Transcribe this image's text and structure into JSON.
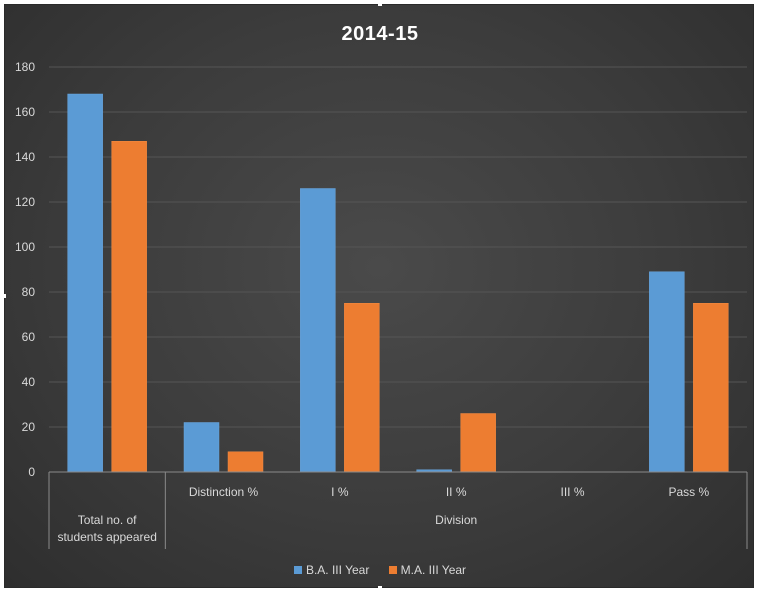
{
  "chart_data": {
    "type": "bar",
    "title": "2014-15",
    "categories": [
      "Total no. of students appeared",
      "Distinction %",
      "I %",
      "II %",
      "III  %",
      "Pass %"
    ],
    "category_groups": [
      {
        "label": "Total no. of students appeared",
        "lines": [
          "Total no. of",
          "students appeared"
        ],
        "span": 1
      },
      {
        "label": "Division",
        "span": 5
      }
    ],
    "series": [
      {
        "name": "B.A. III Year",
        "color": "#5b9bd5",
        "values": [
          168,
          22,
          126,
          1,
          0,
          89
        ]
      },
      {
        "name": "M.A. III Year",
        "color": "#ed7d31",
        "values": [
          147,
          9,
          75,
          26,
          0,
          75
        ]
      }
    ],
    "ylim": [
      0,
      180
    ],
    "yticks": [
      0,
      20,
      40,
      60,
      80,
      100,
      120,
      140,
      160,
      180
    ],
    "grid": true,
    "legend_position": "bottom"
  }
}
